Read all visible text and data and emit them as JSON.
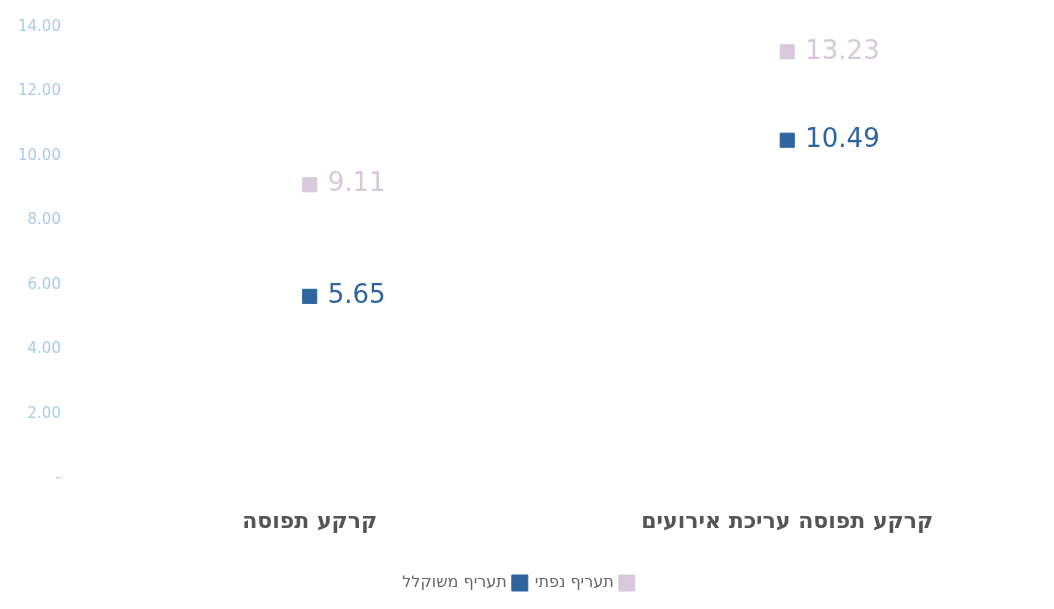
{
  "chart_data": {
    "type": "scatter",
    "categories": [
      "קרקע תפוסה",
      "קרקע תפוסה עריכת אירועים"
    ],
    "series": [
      {
        "name": "תעריף נפתי",
        "color": "#d8c8dc",
        "values": [
          9.11,
          13.23
        ]
      },
      {
        "name": "תעריף משוקלל",
        "color": "#2e64a0",
        "values": [
          5.65,
          10.49
        ]
      }
    ],
    "ylim": [
      0,
      14
    ],
    "yticks": [
      {
        "value": 0,
        "label": "-"
      },
      {
        "value": 2,
        "label": "2.00"
      },
      {
        "value": 4,
        "label": "4.00"
      },
      {
        "value": 6,
        "label": "6.00"
      },
      {
        "value": 8,
        "label": "8.00"
      },
      {
        "value": 10,
        "label": "10.00"
      },
      {
        "value": 12,
        "label": "12.00"
      },
      {
        "value": 14,
        "label": "14.00"
      }
    ],
    "grid": false,
    "legend": "bottom",
    "marker": "square",
    "data_labels": true
  }
}
